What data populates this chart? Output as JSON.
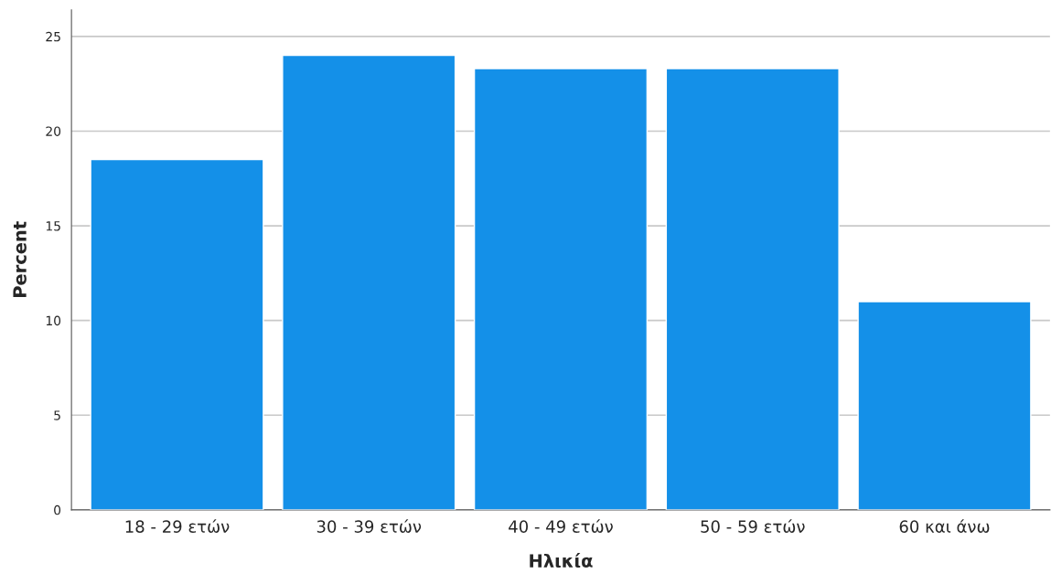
{
  "chart_data": {
    "type": "bar",
    "xlabel": "Ηλικία",
    "ylabel": "Percent",
    "categories": [
      "18 - 29 ετών",
      "30 - 39 ετών",
      "40 - 49 ετών",
      "50 - 59 ετών",
      "60 και άνω"
    ],
    "values": [
      18.5,
      24.0,
      23.3,
      23.3,
      11.0
    ],
    "color": "#1490e8",
    "ylim": [
      0,
      26.4
    ],
    "yticks": [
      0,
      5,
      10,
      15,
      20,
      25
    ],
    "grid": "y",
    "legend": false
  }
}
